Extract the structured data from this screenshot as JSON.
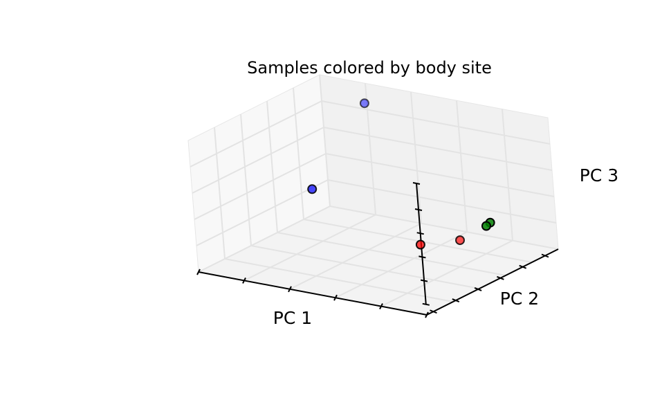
{
  "chart_data": {
    "type": "scatter",
    "projection": "3d",
    "title": "Samples colored by body site",
    "xlabel": "PC 1",
    "ylabel": "PC 2",
    "zlabel": "PC 3",
    "x_tick_labels_shown": false,
    "y_tick_labels_shown": false,
    "z_tick_labels_shown": false,
    "grid": true,
    "legend": "none",
    "groups": [
      {
        "color": "#0000ff",
        "points": [
          {
            "x": 0.22,
            "y": 0.95,
            "z": 0.88
          },
          {
            "x": 0.2,
            "y": 0.55,
            "z": 0.42
          }
        ]
      },
      {
        "color": "#ff0000",
        "points": [
          {
            "x": 0.7,
            "y": 0.78,
            "z": 0.08
          },
          {
            "x": 0.62,
            "y": 0.62,
            "z": 0.1
          }
        ]
      },
      {
        "color": "#008000",
        "points": [
          {
            "x": 0.98,
            "y": 0.55,
            "z": 0.42
          },
          {
            "x": 0.98,
            "y": 0.52,
            "z": 0.41
          }
        ]
      }
    ]
  }
}
